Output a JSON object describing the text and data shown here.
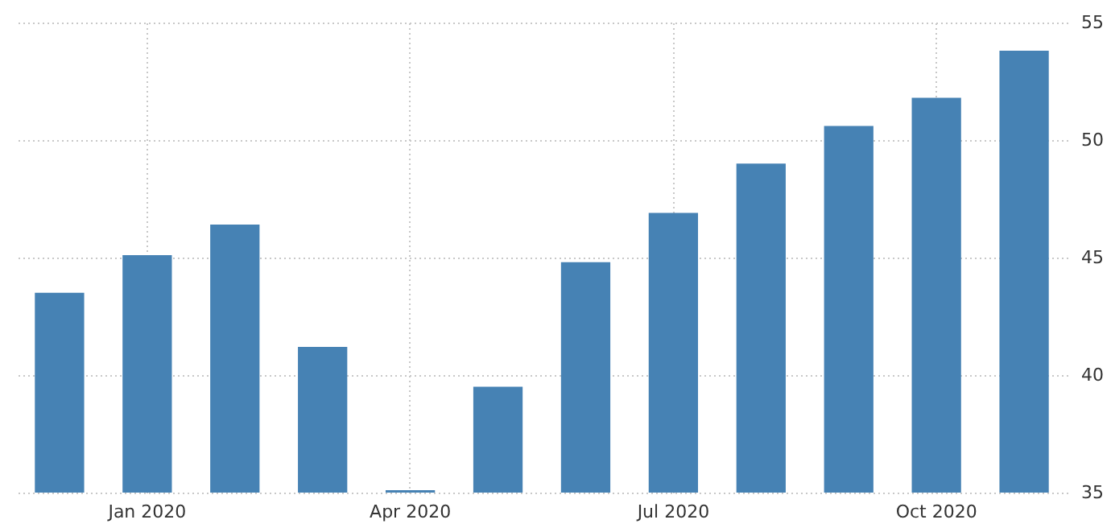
{
  "chart_data": {
    "type": "bar",
    "categories": [
      null,
      "Jan 2020",
      null,
      null,
      "Apr 2020",
      null,
      null,
      "Jul 2020",
      null,
      null,
      "Oct 2020",
      null
    ],
    "values": [
      43.5,
      45.1,
      46.4,
      41.2,
      35.1,
      39.5,
      44.8,
      46.9,
      49.0,
      50.6,
      51.8,
      53.8
    ],
    "color": "#4682b4",
    "ylim": [
      35,
      55
    ],
    "yticks": [
      35,
      40,
      45,
      50,
      55
    ],
    "grid": true
  }
}
